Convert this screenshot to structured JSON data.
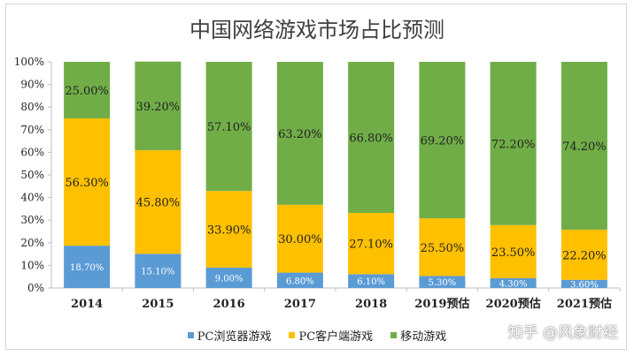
{
  "chart_data": {
    "type": "bar",
    "stacked": true,
    "title": "中国网络游戏市场占比预测",
    "categories": [
      "2014",
      "2015",
      "2016",
      "2017",
      "2018",
      "2019预估",
      "2020预估",
      "2021预估"
    ],
    "series": [
      {
        "name": "PC浏览器游戏",
        "color": "#5b9bd5",
        "values": [
          18.7,
          15.1,
          9.0,
          6.8,
          6.1,
          5.3,
          4.3,
          3.6
        ],
        "labels": [
          "18.70%",
          "15.10%",
          "9.00%",
          "6.80%",
          "6.10%",
          "5.30%",
          "4.30%",
          "3.60%"
        ]
      },
      {
        "name": "PC客户端游戏",
        "color": "#ffc000",
        "values": [
          56.3,
          45.8,
          33.9,
          30.0,
          27.1,
          25.5,
          23.5,
          22.2
        ],
        "labels": [
          "56.30%",
          "45.80%",
          "33.90%",
          "30.00%",
          "27.10%",
          "25.50%",
          "23.50%",
          "22.20%"
        ]
      },
      {
        "name": "移动游戏",
        "color": "#70ad47",
        "values": [
          25.0,
          39.2,
          57.1,
          63.2,
          66.8,
          69.2,
          72.2,
          74.2
        ],
        "labels": [
          "25.00%",
          "39.20%",
          "57.10%",
          "63.20%",
          "66.80%",
          "69.20%",
          "72.20%",
          "74.20%"
        ]
      }
    ],
    "ylim": [
      0,
      100
    ],
    "yticks": [
      "0%",
      "10%",
      "20%",
      "30%",
      "40%",
      "50%",
      "60%",
      "70%",
      "80%",
      "90%",
      "100%"
    ],
    "grid": false,
    "legend": "bottom"
  },
  "watermark": "知乎 @风象财经"
}
